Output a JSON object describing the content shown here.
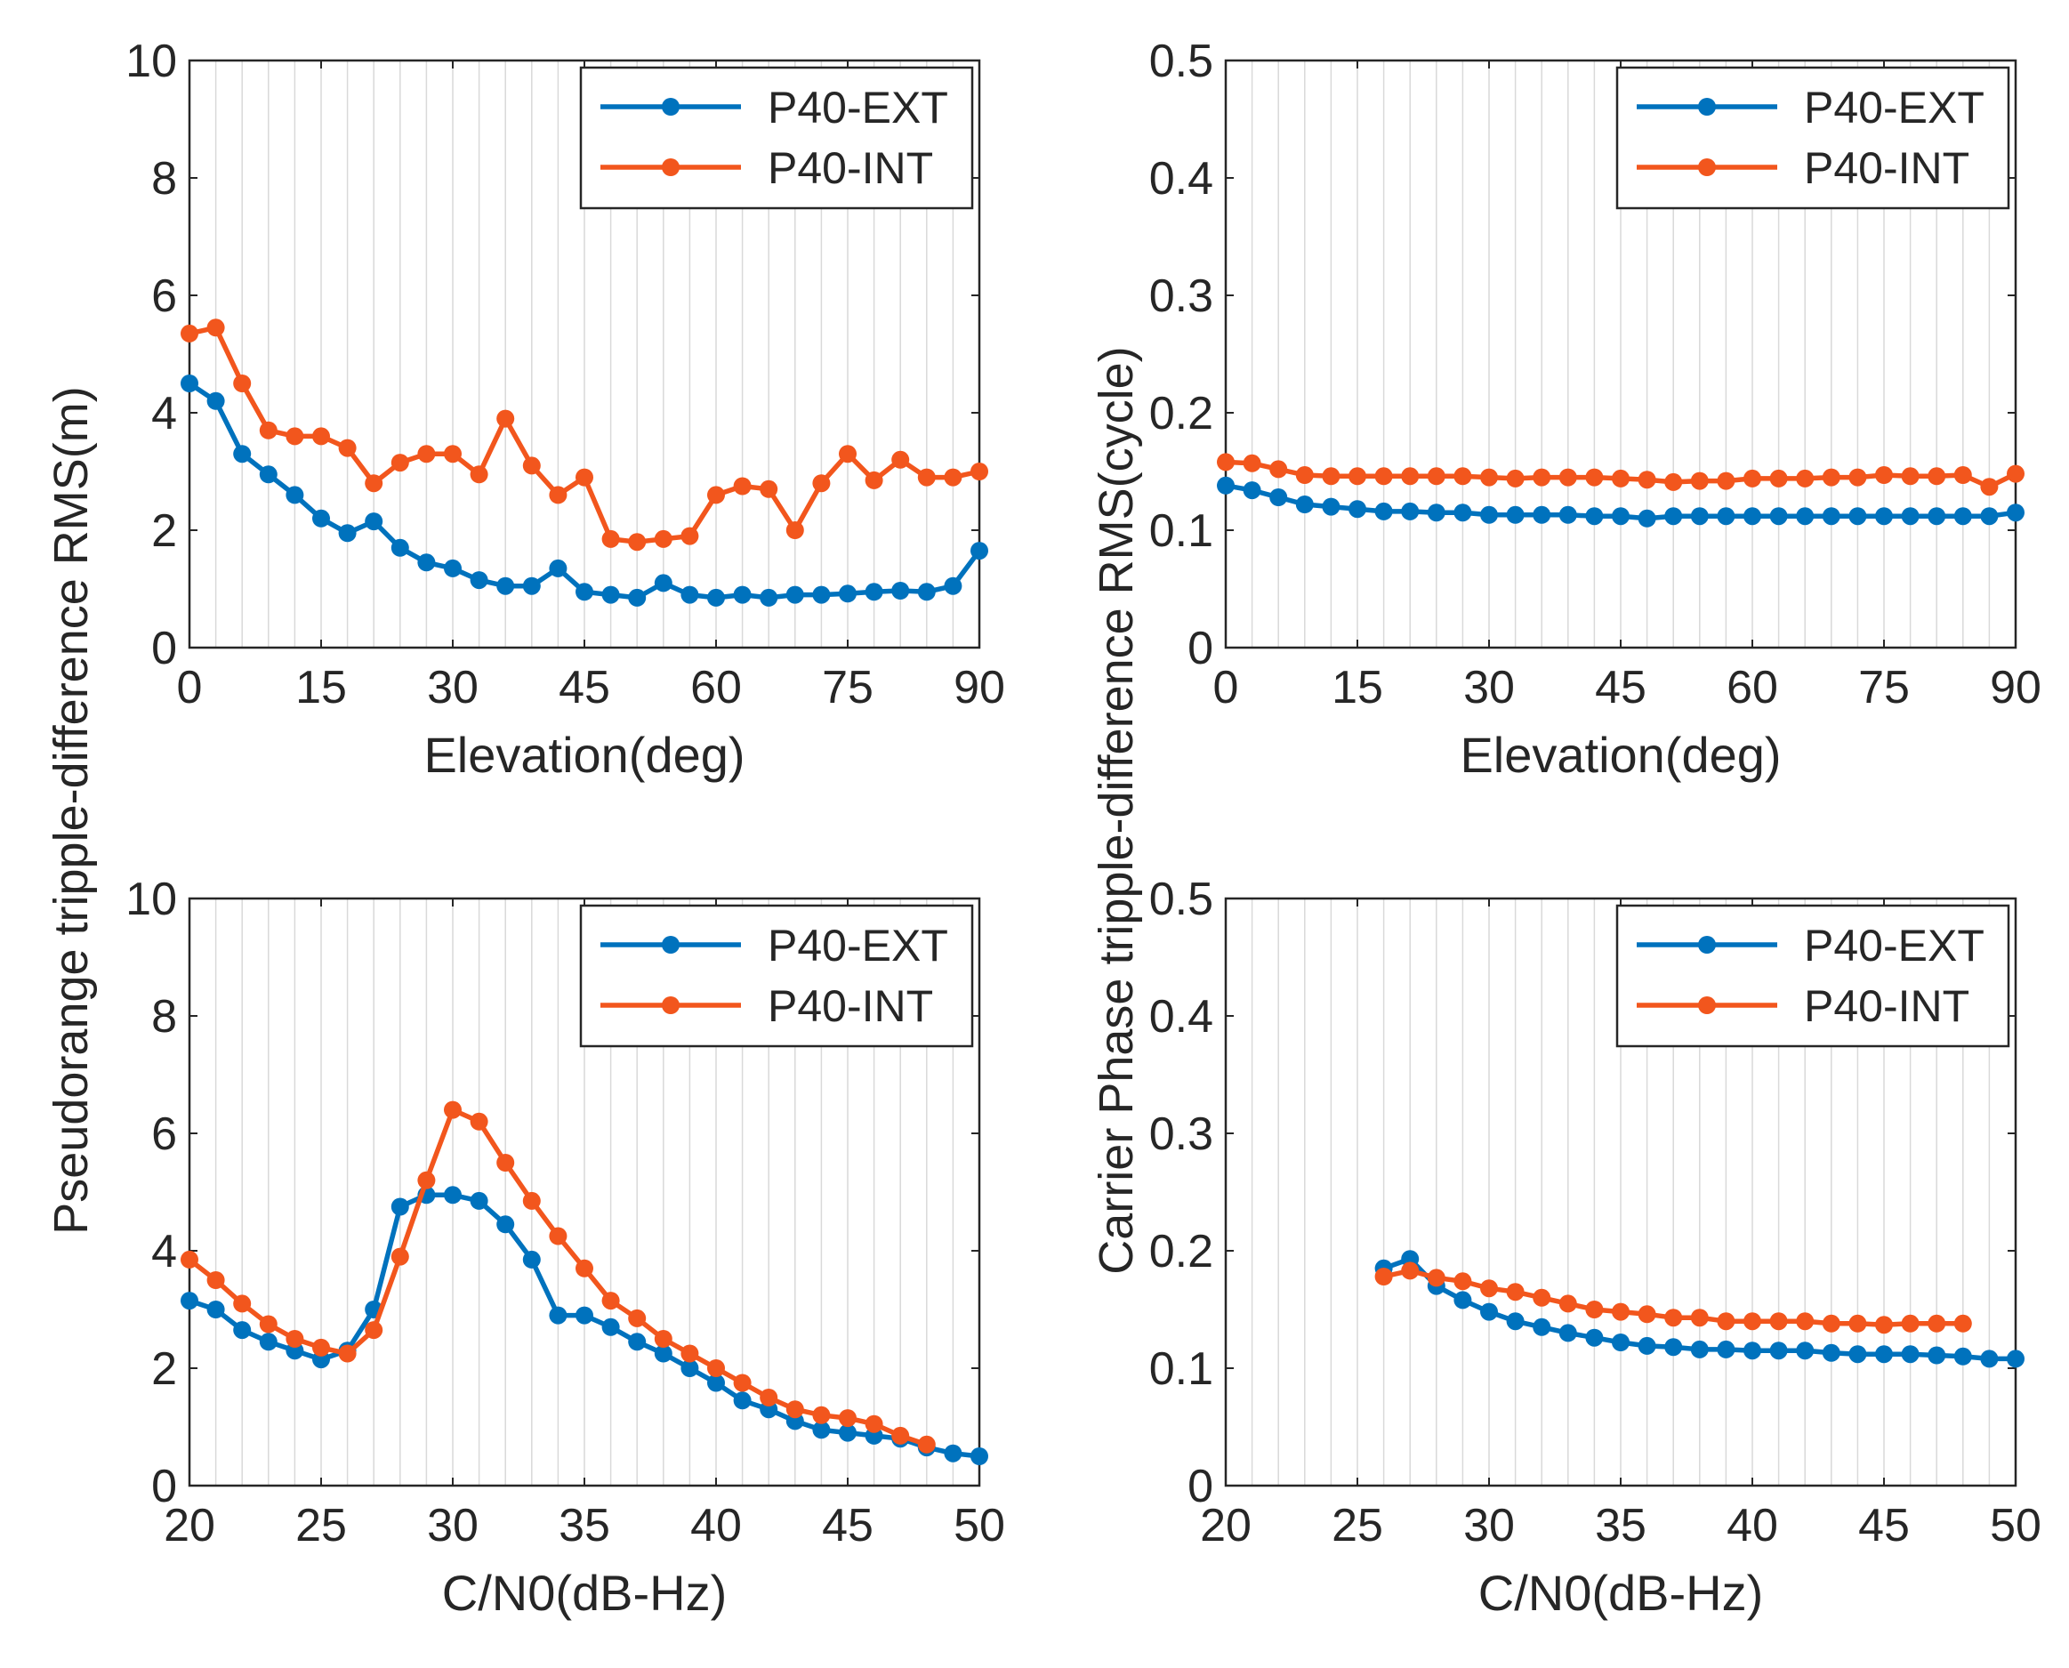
{
  "figure": {
    "ylabel_left": "Pseudorange tripple-difference RMS(m)",
    "ylabel_right": "Carrier Phase tripple-difference RMS(cycle)"
  },
  "colors": {
    "ext": "#0072BD",
    "int": "#F2561D",
    "grid": "#d9d9d9",
    "axis": "#262626"
  },
  "chart_data": [
    {
      "type": "line",
      "xlabel": "Elevation(deg)",
      "ylabel": "",
      "xlim": [
        0,
        90
      ],
      "ylim": [
        0,
        10
      ],
      "xticks": [
        0,
        15,
        30,
        45,
        60,
        75,
        90
      ],
      "yticks": [
        0,
        2,
        4,
        6,
        8,
        10
      ],
      "ytick_labels": [
        "0",
        "2",
        "4",
        "6",
        "8",
        "10"
      ],
      "legend": "top-right",
      "x": [
        0,
        3,
        6,
        9,
        12,
        15,
        18,
        21,
        24,
        27,
        30,
        33,
        36,
        39,
        42,
        45,
        48,
        51,
        54,
        57,
        60,
        63,
        66,
        69,
        72,
        75,
        78,
        81,
        84,
        87,
        90
      ],
      "series": [
        {
          "name": "P40-EXT",
          "color": "ext",
          "values": [
            4.5,
            4.2,
            3.3,
            2.95,
            2.6,
            2.2,
            1.95,
            2.15,
            1.7,
            1.45,
            1.35,
            1.15,
            1.05,
            1.05,
            1.35,
            0.95,
            0.9,
            0.85,
            1.1,
            0.9,
            0.85,
            0.9,
            0.85,
            0.9,
            0.9,
            0.92,
            0.95,
            0.97,
            0.95,
            1.05,
            1.65
          ]
        },
        {
          "name": "P40-INT",
          "color": "int",
          "values": [
            5.35,
            5.45,
            4.5,
            3.7,
            3.6,
            3.6,
            3.4,
            2.8,
            3.15,
            3.3,
            3.3,
            2.95,
            3.9,
            3.1,
            2.6,
            2.9,
            1.85,
            1.8,
            1.85,
            1.9,
            2.6,
            2.75,
            2.7,
            2.0,
            2.8,
            3.3,
            2.85,
            3.2,
            2.9,
            2.9,
            3.0
          ]
        }
      ]
    },
    {
      "type": "line",
      "xlabel": "Elevation(deg)",
      "ylabel": "",
      "xlim": [
        0,
        90
      ],
      "ylim": [
        0,
        0.5
      ],
      "xticks": [
        0,
        15,
        30,
        45,
        60,
        75,
        90
      ],
      "yticks": [
        0,
        0.1,
        0.2,
        0.3,
        0.4,
        0.5
      ],
      "ytick_labels": [
        "0",
        "0.1",
        "0.2",
        "0.3",
        "0.4",
        "0.5"
      ],
      "legend": "top-right",
      "x": [
        0,
        3,
        6,
        9,
        12,
        15,
        18,
        21,
        24,
        27,
        30,
        33,
        36,
        39,
        42,
        45,
        48,
        51,
        54,
        57,
        60,
        63,
        66,
        69,
        72,
        75,
        78,
        81,
        84,
        87,
        90
      ],
      "series": [
        {
          "name": "P40-EXT",
          "color": "ext",
          "values": [
            0.138,
            0.134,
            0.128,
            0.122,
            0.12,
            0.118,
            0.116,
            0.116,
            0.115,
            0.115,
            0.113,
            0.113,
            0.113,
            0.113,
            0.112,
            0.112,
            0.11,
            0.112,
            0.112,
            0.112,
            0.112,
            0.112,
            0.112,
            0.112,
            0.112,
            0.112,
            0.112,
            0.112,
            0.112,
            0.112,
            0.115
          ]
        },
        {
          "name": "P40-INT",
          "color": "int",
          "values": [
            0.158,
            0.157,
            0.152,
            0.147,
            0.146,
            0.146,
            0.146,
            0.146,
            0.146,
            0.146,
            0.145,
            0.144,
            0.145,
            0.145,
            0.145,
            0.144,
            0.143,
            0.141,
            0.142,
            0.142,
            0.144,
            0.144,
            0.144,
            0.145,
            0.145,
            0.147,
            0.146,
            0.146,
            0.147,
            0.137,
            0.148
          ]
        }
      ]
    },
    {
      "type": "line",
      "xlabel": "C/N0(dB-Hz)",
      "ylabel": "",
      "xlim": [
        20,
        50
      ],
      "ylim": [
        0,
        10
      ],
      "xticks": [
        20,
        25,
        30,
        35,
        40,
        45,
        50
      ],
      "yticks": [
        0,
        2,
        4,
        6,
        8,
        10
      ],
      "ytick_labels": [
        "0",
        "2",
        "4",
        "6",
        "8",
        "10"
      ],
      "legend": "top-right",
      "series": [
        {
          "name": "P40-EXT",
          "color": "ext",
          "x": [
            20,
            21,
            22,
            23,
            24,
            25,
            26,
            27,
            28,
            29,
            30,
            31,
            32,
            33,
            34,
            35,
            36,
            37,
            38,
            39,
            40,
            41,
            42,
            43,
            44,
            45,
            46,
            47,
            48,
            49,
            50
          ],
          "values": [
            3.15,
            3.0,
            2.65,
            2.45,
            2.3,
            2.15,
            2.3,
            3.0,
            4.75,
            4.95,
            4.95,
            4.85,
            4.45,
            3.85,
            2.9,
            2.9,
            2.7,
            2.45,
            2.25,
            2.0,
            1.75,
            1.45,
            1.3,
            1.1,
            0.95,
            0.9,
            0.85,
            0.8,
            0.65,
            0.55,
            0.5
          ]
        },
        {
          "name": "P40-INT",
          "color": "int",
          "x": [
            20,
            21,
            22,
            23,
            24,
            25,
            26,
            27,
            28,
            29,
            30,
            31,
            32,
            33,
            34,
            35,
            36,
            37,
            38,
            39,
            40,
            41,
            42,
            43,
            44,
            45,
            46,
            47,
            48
          ],
          "values": [
            3.85,
            3.5,
            3.1,
            2.75,
            2.5,
            2.35,
            2.25,
            2.65,
            3.9,
            5.2,
            6.4,
            6.2,
            5.5,
            4.85,
            4.25,
            3.7,
            3.15,
            2.85,
            2.5,
            2.25,
            2.0,
            1.75,
            1.5,
            1.3,
            1.2,
            1.15,
            1.05,
            0.85,
            0.7
          ]
        }
      ]
    },
    {
      "type": "line",
      "xlabel": "C/N0(dB-Hz)",
      "ylabel": "",
      "xlim": [
        20,
        50
      ],
      "ylim": [
        0,
        0.5
      ],
      "xticks": [
        20,
        25,
        30,
        35,
        40,
        45,
        50
      ],
      "yticks": [
        0,
        0.1,
        0.2,
        0.3,
        0.4,
        0.5
      ],
      "ytick_labels": [
        "0",
        "0.1",
        "0.2",
        "0.3",
        "0.4",
        "0.5"
      ],
      "legend": "top-right",
      "series": [
        {
          "name": "P40-EXT",
          "color": "ext",
          "x": [
            26,
            27,
            28,
            29,
            30,
            31,
            32,
            33,
            34,
            35,
            36,
            37,
            38,
            39,
            40,
            41,
            42,
            43,
            44,
            45,
            46,
            47,
            48,
            49,
            50
          ],
          "values": [
            0.185,
            0.193,
            0.17,
            0.158,
            0.148,
            0.14,
            0.135,
            0.13,
            0.126,
            0.122,
            0.119,
            0.118,
            0.116,
            0.116,
            0.115,
            0.115,
            0.115,
            0.113,
            0.112,
            0.112,
            0.112,
            0.111,
            0.11,
            0.108,
            0.108
          ]
        },
        {
          "name": "P40-INT",
          "color": "int",
          "x": [
            26,
            27,
            28,
            29,
            30,
            31,
            32,
            33,
            34,
            35,
            36,
            37,
            38,
            39,
            40,
            41,
            42,
            43,
            44,
            45,
            46,
            47,
            48
          ],
          "values": [
            0.178,
            0.183,
            0.177,
            0.174,
            0.168,
            0.165,
            0.16,
            0.155,
            0.15,
            0.148,
            0.146,
            0.143,
            0.143,
            0.14,
            0.14,
            0.14,
            0.14,
            0.138,
            0.138,
            0.137,
            0.138,
            0.138,
            0.138
          ]
        }
      ]
    }
  ]
}
